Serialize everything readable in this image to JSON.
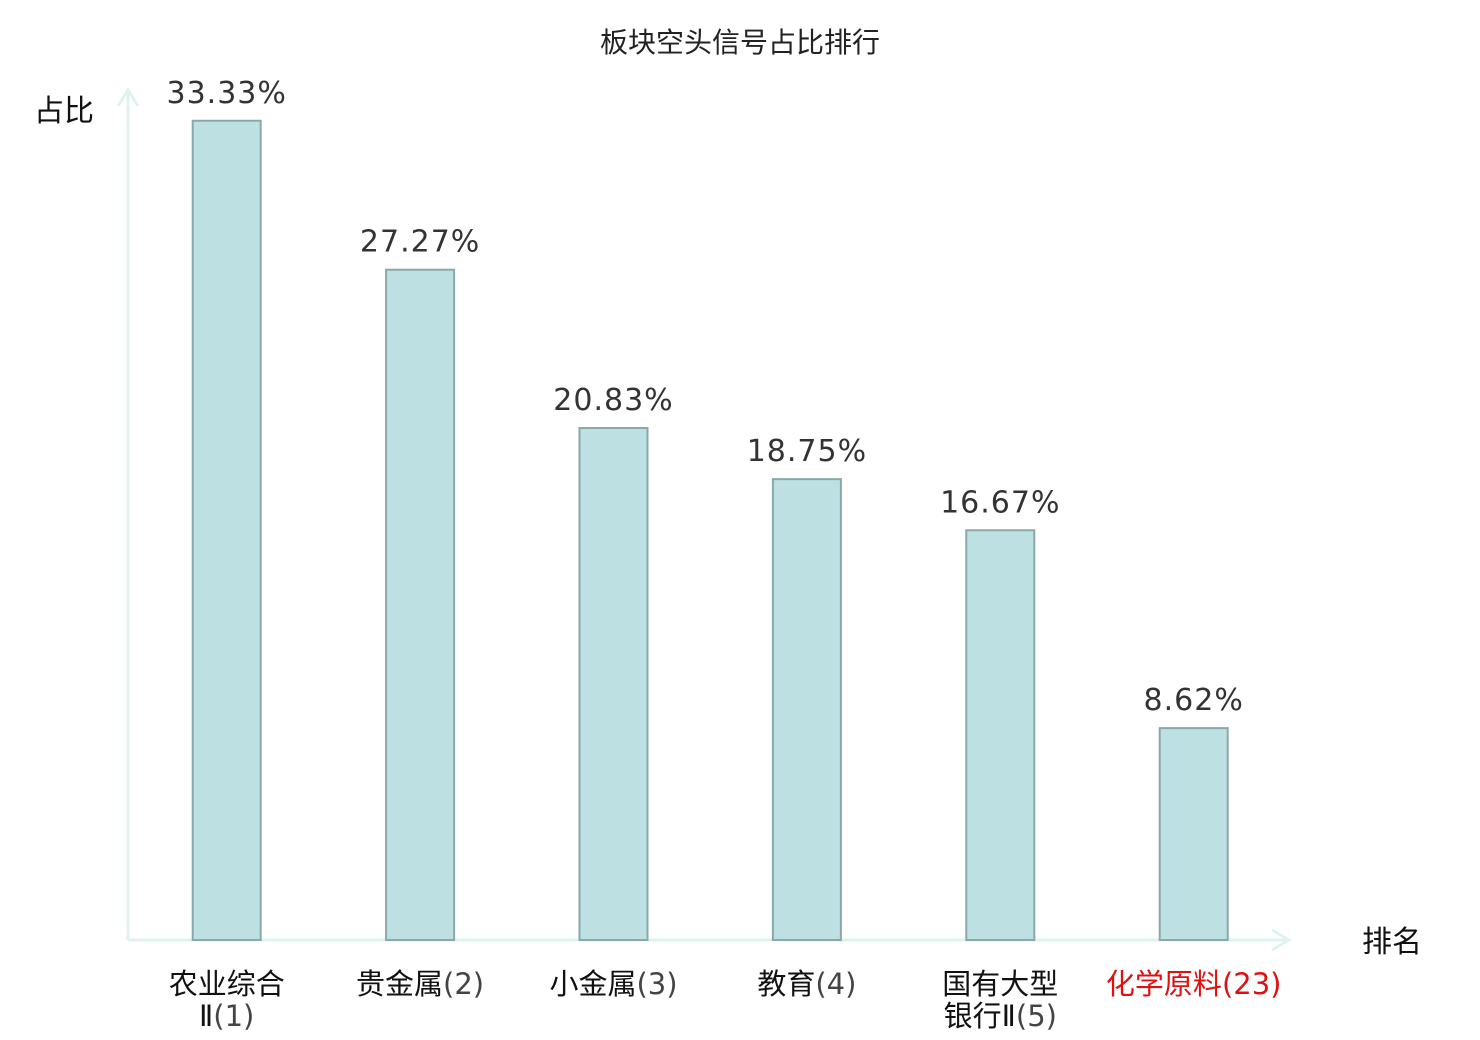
{
  "chart_data": {
    "type": "bar",
    "title": "板块空头信号占比排行",
    "xlabel": "排名",
    "ylabel": "占比",
    "ylim": [
      0,
      34.5
    ],
    "categories": [
      {
        "name_lines": [
          "农业综合",
          "Ⅱ"
        ],
        "rank": "(1)"
      },
      {
        "name_lines": [
          "贵金属"
        ],
        "rank": "(2)"
      },
      {
        "name_lines": [
          "小金属"
        ],
        "rank": "(3)"
      },
      {
        "name_lines": [
          "教育"
        ],
        "rank": "(4)"
      },
      {
        "name_lines": [
          "国有大型",
          "银行Ⅱ"
        ],
        "rank": "(5)"
      },
      {
        "name_lines": [
          "化学原料"
        ],
        "rank": "(23)"
      }
    ],
    "values": [
      33.33,
      27.27,
      20.83,
      18.75,
      16.67,
      8.62
    ],
    "value_labels": [
      "33.33%",
      "27.27%",
      "20.83%",
      "18.75%",
      "16.67%",
      "8.62%"
    ],
    "highlight_index": 5,
    "grid": false,
    "colors": {
      "bar_fill": "#bde0e3",
      "bar_stroke": "#8aa8aa",
      "axis": "#e0f2f0",
      "highlight_text": "#dd1111",
      "normal_text": "#111111",
      "rank_text": "#444444"
    }
  }
}
